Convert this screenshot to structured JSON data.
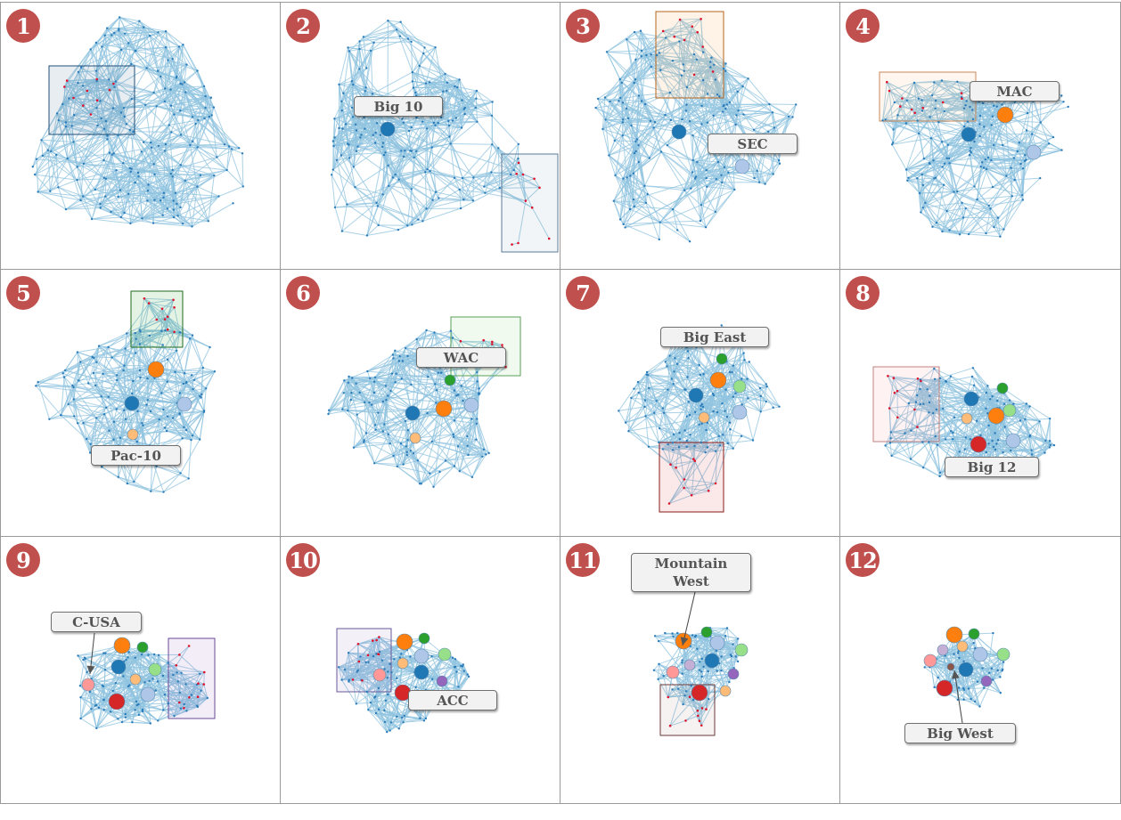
{
  "panels": [
    {
      "number": "1",
      "label": null
    },
    {
      "number": "2",
      "label": "Big 10"
    },
    {
      "number": "3",
      "label": "SEC"
    },
    {
      "number": "4",
      "label": "MAC"
    },
    {
      "number": "5",
      "label": "Pac-10"
    },
    {
      "number": "6",
      "label": "WAC"
    },
    {
      "number": "7",
      "label": "Big East"
    },
    {
      "number": "8",
      "label": "Big 12"
    },
    {
      "number": "9",
      "label": "C-USA"
    },
    {
      "number": "10",
      "label": "ACC"
    },
    {
      "number": "11",
      "label": "Mountain\nWest"
    },
    {
      "number": "12",
      "label": "Big West"
    }
  ],
  "colors": {
    "badge": "#c0504d",
    "edge": "#8fc3df",
    "node": "#2b7bb9",
    "highlight_node": "#e0112b",
    "callout_fill": "#f2f2f2",
    "supernodes": [
      "#1f77b4",
      "#aec7e8",
      "#ff7f0e",
      "#ffbb78",
      "#2ca02c",
      "#98df8a",
      "#d62728",
      "#ff9896",
      "#9467bd",
      "#c5b0d5",
      "#8c564b"
    ]
  }
}
